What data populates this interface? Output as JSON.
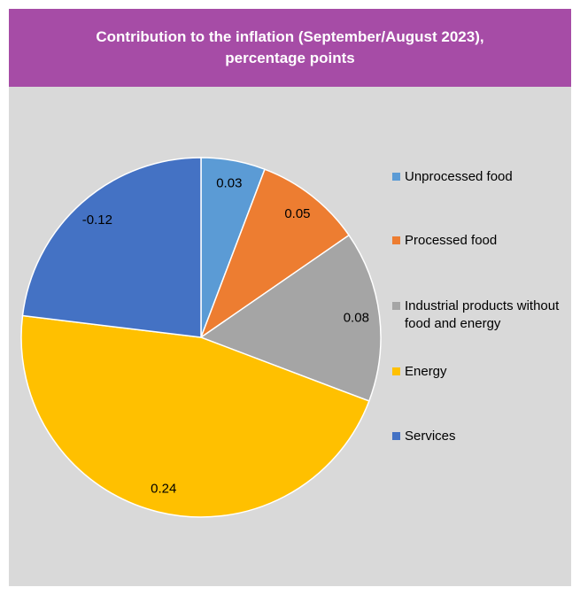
{
  "chart_data": {
    "type": "pie",
    "title": "Contribution to the inflation (September/August 2023), percentage points",
    "categories": [
      "Unprocessed food",
      "Processed food",
      "Industrial products without food and energy",
      "Energy",
      "Services"
    ],
    "values": [
      0.03,
      0.05,
      0.08,
      0.24,
      -0.12
    ],
    "colors": [
      "#5b9bd5",
      "#ed7d31",
      "#a5a5a5",
      "#ffc000",
      "#4472c4"
    ],
    "legend": "right"
  }
}
